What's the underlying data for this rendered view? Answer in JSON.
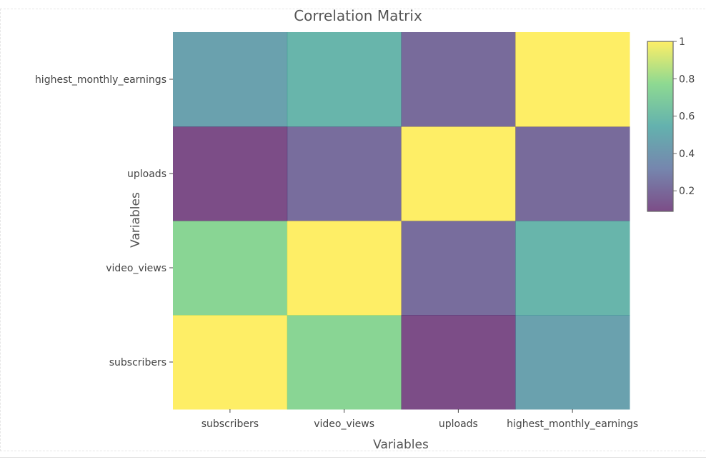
{
  "chart_data": {
    "type": "heatmap",
    "title": "Correlation Matrix",
    "xlabel": "Variables",
    "ylabel": "Variables",
    "x_categories": [
      "subscribers",
      "video_views",
      "uploads",
      "highest_monthly_earnings"
    ],
    "y_categories": [
      "subscribers",
      "video_views",
      "uploads",
      "highest_monthly_earnings"
    ],
    "z": [
      [
        1.0,
        0.75,
        0.09,
        0.46
      ],
      [
        0.75,
        1.0,
        0.22,
        0.57
      ],
      [
        0.09,
        0.22,
        1.0,
        0.21
      ],
      [
        0.46,
        0.57,
        0.21,
        1.0
      ]
    ],
    "zlim": [
      0.09,
      1.0
    ],
    "colorscale": [
      "#440154",
      "#3b528b",
      "#21908c",
      "#5dc963",
      "#fde725"
    ],
    "cell_opacity": 0.7,
    "colorbar": {
      "ticks": [
        0.2,
        0.4,
        0.6,
        0.8,
        1.0
      ],
      "ticklabels": [
        "0.2",
        "0.4",
        "0.6",
        "0.8",
        "1"
      ],
      "placement": "right"
    }
  }
}
